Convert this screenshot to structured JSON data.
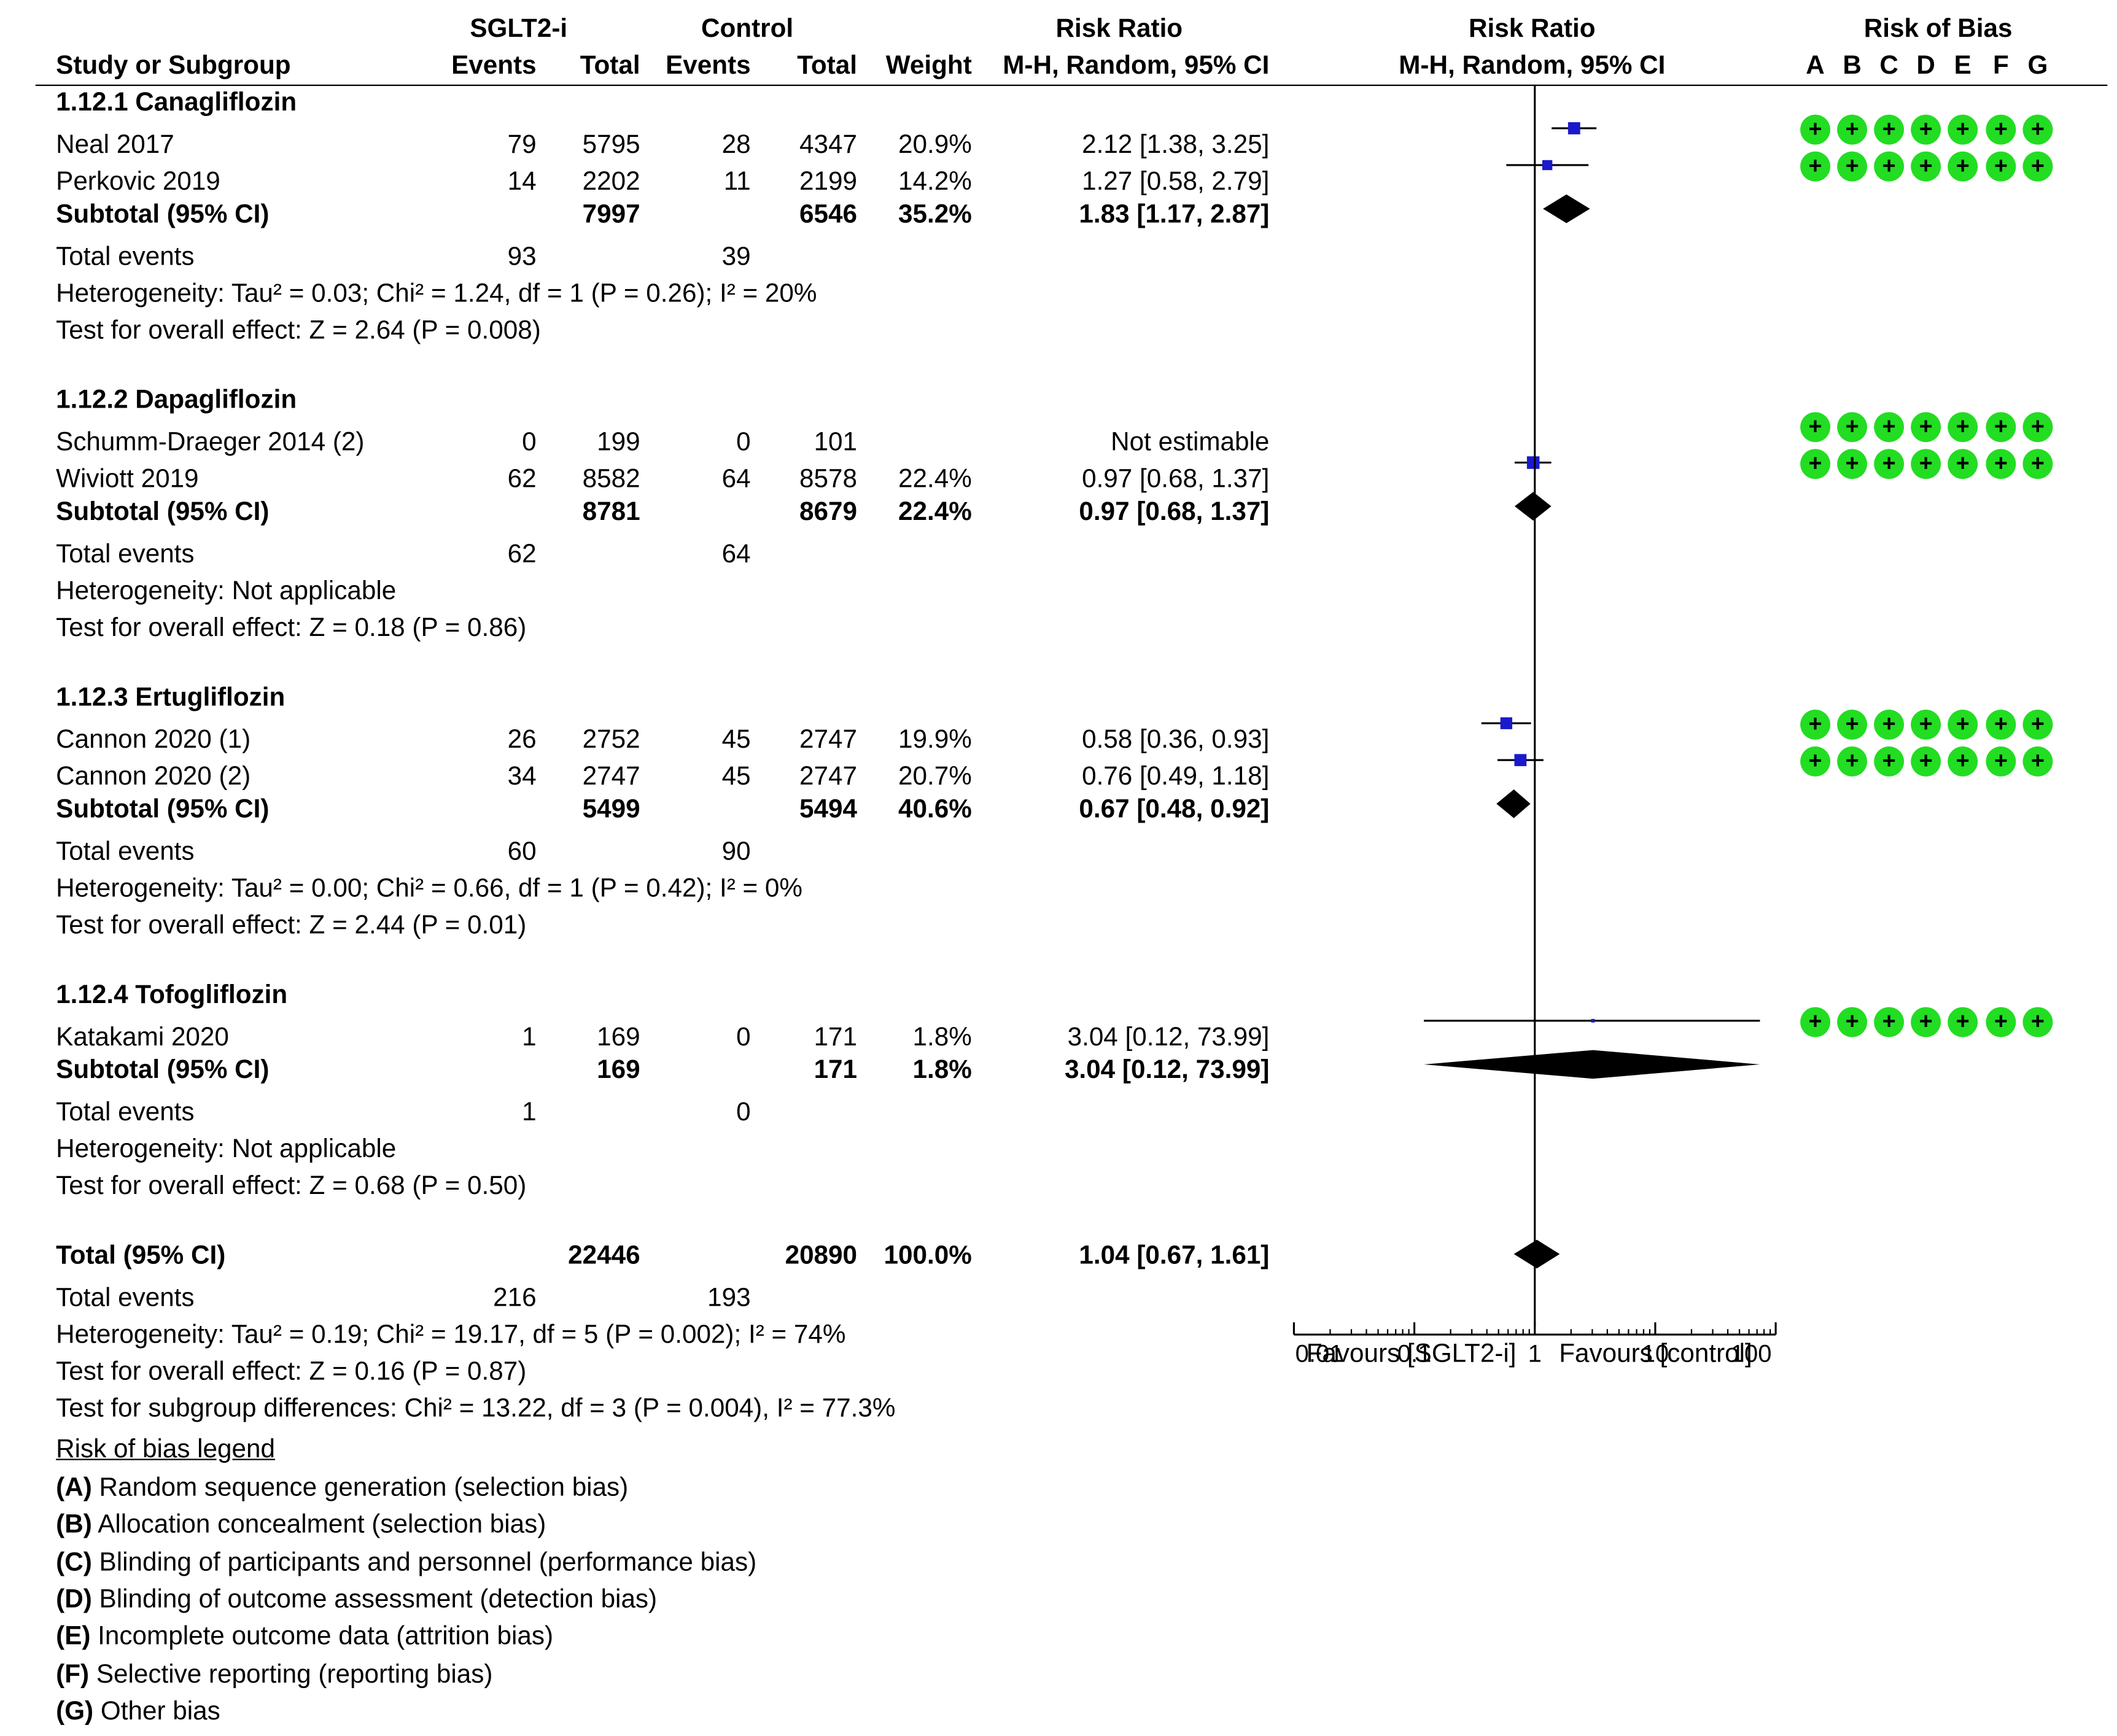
{
  "header": {
    "group1": "SGLT2-i",
    "group2": "Control",
    "effect_col": "Risk Ratio",
    "plot_title": "Risk Ratio",
    "rob_title": "Risk of Bias",
    "study_col": "Study or Subgroup",
    "events1": "Events",
    "total1": "Total",
    "events2": "Events",
    "total2": "Total",
    "weight": "Weight",
    "method": "M-H, Random, 95% CI",
    "plot_method": "M-H, Random, 95% CI",
    "rob_letters": [
      "A",
      "B",
      "C",
      "D",
      "E",
      "F",
      "G"
    ]
  },
  "subgroups": [
    {
      "name": "1.12.1 Canagliflozin",
      "studies": [
        {
          "study": "Neal 2017",
          "e1": "79",
          "t1": "5795",
          "e2": "28",
          "t2": "4347",
          "weight": "20.9%",
          "ci": "2.12 [1.38, 3.25]",
          "rr": 2.12,
          "lo": 1.38,
          "hi": 3.25,
          "w": 20.9
        },
        {
          "study": "Perkovic 2019",
          "e1": "14",
          "t1": "2202",
          "e2": "11",
          "t2": "2199",
          "weight": "14.2%",
          "ci": "1.27 [0.58, 2.79]",
          "rr": 1.27,
          "lo": 0.58,
          "hi": 2.79,
          "w": 14.2
        }
      ],
      "subtotal": {
        "label": "Subtotal (95% CI)",
        "t1": "7997",
        "t2": "6546",
        "weight": "35.2%",
        "ci": "1.83 [1.17, 2.87]",
        "rr": 1.83,
        "lo": 1.17,
        "hi": 2.87
      },
      "total_events": {
        "label": "Total events",
        "e1": "93",
        "e2": "39"
      },
      "heterogeneity": "Heterogeneity: Tau² = 0.03; Chi² = 1.24, df = 1 (P = 0.26); I² = 20%",
      "overall": "Test for overall effect: Z = 2.64 (P = 0.008)"
    },
    {
      "name": "1.12.2 Dapagliflozin",
      "studies": [
        {
          "study": "Schumm-Draeger 2014 (2)",
          "e1": "0",
          "t1": "199",
          "e2": "0",
          "t2": "101",
          "weight": "",
          "ci": "Not estimable",
          "rr": null,
          "lo": null,
          "hi": null,
          "w": 0
        },
        {
          "study": "Wiviott 2019",
          "e1": "62",
          "t1": "8582",
          "e2": "64",
          "t2": "8578",
          "weight": "22.4%",
          "ci": "0.97 [0.68, 1.37]",
          "rr": 0.97,
          "lo": 0.68,
          "hi": 1.37,
          "w": 22.4
        }
      ],
      "subtotal": {
        "label": "Subtotal (95% CI)",
        "t1": "8781",
        "t2": "8679",
        "weight": "22.4%",
        "ci": "0.97 [0.68, 1.37]",
        "rr": 0.97,
        "lo": 0.68,
        "hi": 1.37
      },
      "total_events": {
        "label": "Total events",
        "e1": "62",
        "e2": "64"
      },
      "heterogeneity": "Heterogeneity: Not applicable",
      "overall": "Test for overall effect: Z = 0.18 (P = 0.86)"
    },
    {
      "name": "1.12.3 Ertugliflozin",
      "studies": [
        {
          "study": "Cannon 2020 (1)",
          "e1": "26",
          "t1": "2752",
          "e2": "45",
          "t2": "2747",
          "weight": "19.9%",
          "ci": "0.58 [0.36, 0.93]",
          "rr": 0.58,
          "lo": 0.36,
          "hi": 0.93,
          "w": 19.9
        },
        {
          "study": "Cannon 2020 (2)",
          "e1": "34",
          "t1": "2747",
          "e2": "45",
          "t2": "2747",
          "weight": "20.7%",
          "ci": "0.76 [0.49, 1.18]",
          "rr": 0.76,
          "lo": 0.49,
          "hi": 1.18,
          "w": 20.7
        }
      ],
      "subtotal": {
        "label": "Subtotal (95% CI)",
        "t1": "5499",
        "t2": "5494",
        "weight": "40.6%",
        "ci": "0.67 [0.48, 0.92]",
        "rr": 0.67,
        "lo": 0.48,
        "hi": 0.92
      },
      "total_events": {
        "label": "Total events",
        "e1": "60",
        "e2": "90"
      },
      "heterogeneity": "Heterogeneity: Tau² = 0.00; Chi² = 0.66, df = 1 (P = 0.42); I² = 0%",
      "overall": "Test for overall effect: Z = 2.44 (P = 0.01)"
    },
    {
      "name": "1.12.4 Tofogliflozin",
      "studies": [
        {
          "study": "Katakami 2020",
          "e1": "1",
          "t1": "169",
          "e2": "0",
          "t2": "171",
          "weight": "1.8%",
          "ci": "3.04 [0.12, 73.99]",
          "rr": 3.04,
          "lo": 0.12,
          "hi": 73.99,
          "w": 1.8
        }
      ],
      "subtotal": {
        "label": "Subtotal (95% CI)",
        "t1": "169",
        "t2": "171",
        "weight": "1.8%",
        "ci": "3.04 [0.12, 73.99]",
        "rr": 3.04,
        "lo": 0.12,
        "hi": 73.99
      },
      "total_events": {
        "label": "Total events",
        "e1": "1",
        "e2": "0"
      },
      "heterogeneity": "Heterogeneity: Not applicable",
      "overall": "Test for overall effect: Z = 0.68 (P = 0.50)"
    }
  ],
  "total": {
    "label": "Total (95% CI)",
    "t1": "22446",
    "t2": "20890",
    "weight": "100.0%",
    "ci": "1.04 [0.67, 1.61]",
    "rr": 1.04,
    "lo": 0.67,
    "hi": 1.61,
    "events_label": "Total events",
    "e1": "216",
    "e2": "193",
    "heterogeneity": "Heterogeneity: Tau² = 0.19; Chi² = 19.17, df = 5 (P = 0.002); I² = 74%",
    "overall": "Test for overall effect: Z = 0.16 (P = 0.87)",
    "subgroup_diff": "Test for subgroup differences: Chi² = 13.22, df = 3 (P = 0.004), I² = 77.3%"
  },
  "axis": {
    "ticks": [
      "0.01",
      "0.1",
      "1",
      "10",
      "100"
    ],
    "tick_values": [
      0.01,
      0.1,
      1,
      10,
      100
    ],
    "favours_left": "Favours [SGLT2-i]",
    "favours_right": "Favours [control]"
  },
  "legend": {
    "title": "Risk of bias legend",
    "items": [
      {
        "letter": "(A)",
        "text": "Random sequence generation (selection bias)"
      },
      {
        "letter": "(B)",
        "text": "Allocation concealment (selection bias)"
      },
      {
        "letter": "(C)",
        "text": "Blinding of participants and personnel (performance bias)"
      },
      {
        "letter": "(D)",
        "text": "Blinding of outcome assessment (detection bias)"
      },
      {
        "letter": "(E)",
        "text": "Incomplete outcome data (attrition bias)"
      },
      {
        "letter": "(F)",
        "text": "Selective reporting (reporting bias)"
      },
      {
        "letter": "(G)",
        "text": "Other bias"
      }
    ]
  },
  "colors": {
    "study_marker": "#1a1acc",
    "diamond": "#000000",
    "rob_low": "#22dd22"
  },
  "chart_data": {
    "type": "forest",
    "title": "Risk Ratio M-H, Random, 95% CI",
    "xscale": "log",
    "xlim": [
      0.01,
      100
    ],
    "xticks": [
      0.01,
      0.1,
      1,
      10,
      100
    ],
    "xlabel_left": "Favours [SGLT2-i]",
    "xlabel_right": "Favours [control]",
    "studies": [
      {
        "name": "Neal 2017",
        "rr": 2.12,
        "lo": 1.38,
        "hi": 3.25,
        "weight": 20.9
      },
      {
        "name": "Perkovic 2019",
        "rr": 1.27,
        "lo": 0.58,
        "hi": 2.79,
        "weight": 14.2
      },
      {
        "name": "Wiviott 2019",
        "rr": 0.97,
        "lo": 0.68,
        "hi": 1.37,
        "weight": 22.4
      },
      {
        "name": "Cannon 2020 (1)",
        "rr": 0.58,
        "lo": 0.36,
        "hi": 0.93,
        "weight": 19.9
      },
      {
        "name": "Cannon 2020 (2)",
        "rr": 0.76,
        "lo": 0.49,
        "hi": 1.18,
        "weight": 20.7
      },
      {
        "name": "Katakami 2020",
        "rr": 3.04,
        "lo": 0.12,
        "hi": 73.99,
        "weight": 1.8
      }
    ],
    "subtotals": [
      {
        "name": "1.12.1 Canagliflozin",
        "rr": 1.83,
        "lo": 1.17,
        "hi": 2.87
      },
      {
        "name": "1.12.2 Dapagliflozin",
        "rr": 0.97,
        "lo": 0.68,
        "hi": 1.37
      },
      {
        "name": "1.12.3 Ertugliflozin",
        "rr": 0.67,
        "lo": 0.48,
        "hi": 0.92
      },
      {
        "name": "1.12.4 Tofogliflozin",
        "rr": 3.04,
        "lo": 0.12,
        "hi": 73.99
      }
    ],
    "overall": {
      "rr": 1.04,
      "lo": 0.67,
      "hi": 1.61
    }
  }
}
